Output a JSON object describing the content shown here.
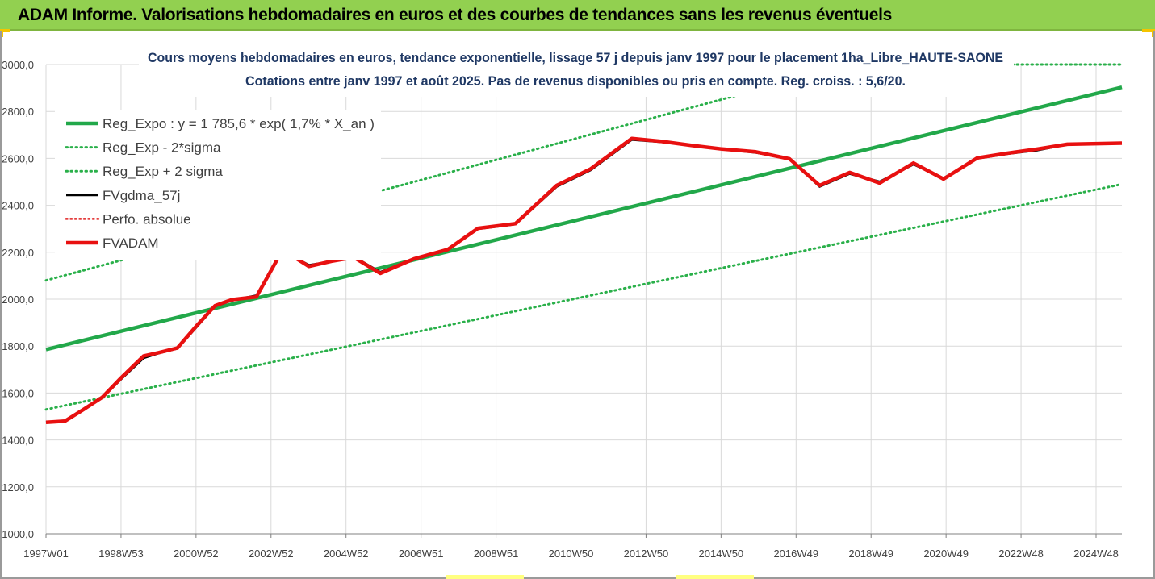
{
  "header": {
    "title": "ADAM Informe. Valorisations hebdomadaires en euros et des courbes de tendances sans les revenus éventuels"
  },
  "colors": {
    "header_bg": "#92d050",
    "trend_green": "#22a84a",
    "sigma_dotted": "#2ab04a",
    "fvgdma_black": "#000000",
    "perfo_red_dotted": "#e02020",
    "fvadam_red": "#e81010",
    "accent_yellow": "#f5c400"
  },
  "chart_data": {
    "type": "line",
    "title_line1": "Cours moyens hebdomadaires en euros, tendance exponentielle, lissage 57 j depuis janv 1997 pour le placement 1ha_Libre_HAUTE-SAONE",
    "title_line2": "Cotations entre janv 1997 et août 2025.  Pas de revenus disponibles ou pris en compte. Reg. croiss. : 5,6/20.",
    "xlabel": "",
    "ylabel": "",
    "ylim": [
      1000,
      3000
    ],
    "xlim": [
      1997.0,
      2025.65
    ],
    "y_ticks": [
      "1000,0",
      "1200,0",
      "1400,0",
      "1600,0",
      "1800,0",
      "2000,0",
      "2200,0",
      "2400,0",
      "2600,0",
      "2800,0",
      "3000,0"
    ],
    "x_ticks": [
      "1997W01",
      "1998W53",
      "2000W52",
      "2002W52",
      "2004W52",
      "2006W51",
      "2008W51",
      "2010W50",
      "2012W50",
      "2014W50",
      "2016W49",
      "2018W49",
      "2020W49",
      "2022W48",
      "2024W48"
    ],
    "grid": true,
    "legend_position": "top-left",
    "legend": [
      {
        "name": "Reg_Expo : y = 1 785,6 * exp( 1,7% *  X_an )",
        "style": "solid-green-thick"
      },
      {
        "name": "Reg_Exp - 2*sigma",
        "style": "dotted-green"
      },
      {
        "name": "Reg_Exp + 2 sigma",
        "style": "dotted-green"
      },
      {
        "name": "FVgdma_57j",
        "style": "solid-black"
      },
      {
        "name": "Perfo. absolue",
        "style": "dotted-red"
      },
      {
        "name": "FVADAM",
        "style": "solid-red-thick"
      }
    ],
    "series": [
      {
        "name": "Reg_Expo : y = 1 785,6 * exp( 1,7% *  X_an )",
        "x": [
          1997.0,
          2025.65
        ],
        "y": [
          1785.6,
          2903
        ]
      },
      {
        "name": "Reg_Exp - 2*sigma",
        "x": [
          1997.0,
          2025.65
        ],
        "y": [
          1530,
          2490
        ]
      },
      {
        "name": "Reg_Exp + 2 sigma",
        "x": [
          1997.0,
          2015.9
        ],
        "y": [
          2080,
          2890
        ]
      },
      {
        "name": "FVgdma_57j",
        "x": [
          1997.0,
          1997.5,
          1998.0,
          1998.5,
          1999.0,
          1999.6,
          2000.0,
          2000.5,
          2001.0,
          2001.5,
          2001.95,
          2002.6,
          2003.3,
          2004.0,
          2004.6,
          2005.2,
          2005.9,
          2006.8,
          2007.7,
          2008.5,
          2009.5,
          2010.6,
          2011.5,
          2012.6,
          2013.4,
          2014.2,
          2015.0,
          2015.9,
          2016.8,
          2017.6,
          2018.4,
          2019.2,
          2020.1,
          2020.9,
          2021.8,
          2022.6,
          2023.4,
          2024.2,
          2025.65
        ],
        "y": [
          1475,
          1482,
          1530,
          1580,
          1660,
          1750,
          1770,
          1790,
          1880,
          1970,
          1995,
          2015,
          2205,
          2145,
          2160,
          2180,
          2115,
          2170,
          2210,
          2300,
          2320,
          2480,
          2550,
          2680,
          2670,
          2655,
          2640,
          2625,
          2600,
          2480,
          2535,
          2500,
          2575,
          2515,
          2600,
          2620,
          2635,
          2660,
          2665
        ]
      },
      {
        "name": "FVADAM",
        "x": [
          1997.0,
          1997.5,
          1998.0,
          1998.5,
          1999.0,
          1999.6,
          2000.0,
          2000.5,
          2001.0,
          2001.5,
          2001.95,
          2002.6,
          2003.3,
          2004.0,
          2004.6,
          2005.2,
          2005.9,
          2006.8,
          2007.7,
          2008.5,
          2009.5,
          2010.6,
          2011.5,
          2012.6,
          2013.4,
          2014.2,
          2015.0,
          2015.9,
          2016.8,
          2017.6,
          2018.4,
          2019.2,
          2020.1,
          2020.9,
          2021.8,
          2022.6,
          2023.4,
          2024.2,
          2025.65
        ],
        "y": [
          1475,
          1480,
          1530,
          1582,
          1665,
          1758,
          1772,
          1792,
          1885,
          1972,
          1998,
          2010,
          2210,
          2140,
          2162,
          2178,
          2110,
          2172,
          2212,
          2302,
          2322,
          2485,
          2555,
          2685,
          2672,
          2655,
          2640,
          2628,
          2598,
          2485,
          2540,
          2495,
          2580,
          2512,
          2602,
          2622,
          2640,
          2660,
          2665
        ]
      },
      {
        "name": "Perfo. absolue",
        "x": [],
        "y": []
      }
    ]
  }
}
